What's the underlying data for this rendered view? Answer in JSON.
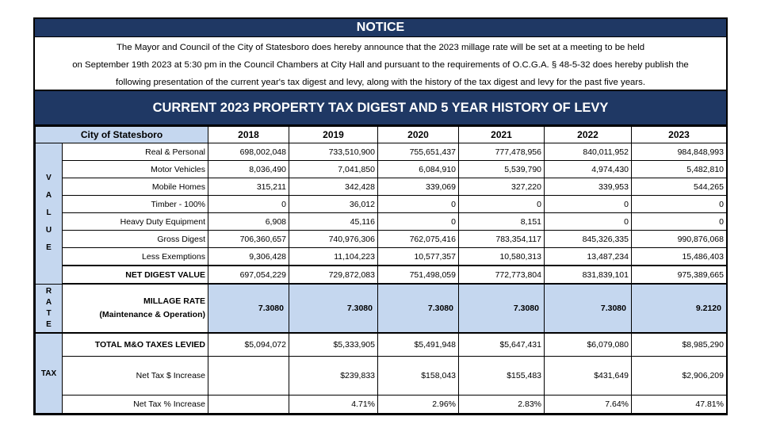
{
  "notice": {
    "heading": "NOTICE",
    "lines": [
      "The Mayor and Council of the City of Statesboro does hereby announce that the 2023 millage rate will be set at a meeting to be held",
      "on September 19th 2023 at 5:30 pm in the Council Chambers at City Hall and pursuant to the requirements of O.C.G.A. § 48-5-32 does hereby publish the",
      "following presentation of the current year's tax digest and levy, along with the history of the tax digest and levy for the past five years."
    ]
  },
  "title": "CURRENT 2023 PROPERTY TAX DIGEST AND 5 YEAR HISTORY OF LEVY",
  "table": {
    "entity": "City of Statesboro",
    "years": [
      "2018",
      "2019",
      "2020",
      "2021",
      "2022",
      "2023"
    ],
    "value_section_letters": [
      "V",
      "A",
      "L",
      "U",
      "E"
    ],
    "rate_section_letters": [
      "R",
      "A",
      "T",
      "E"
    ],
    "tax_section_label": "TAX",
    "value_rows": [
      {
        "label": "Real & Personal",
        "values": [
          "698,002,048",
          "733,510,900",
          "755,651,437",
          "777,478,956",
          "840,011,952",
          "984,848,993"
        ]
      },
      {
        "label": "Motor Vehicles",
        "values": [
          "8,036,490",
          "7,041,850",
          "6,084,910",
          "5,539,790",
          "4,974,430",
          "5,482,810"
        ]
      },
      {
        "label": "Mobile Homes",
        "values": [
          "315,211",
          "342,428",
          "339,069",
          "327,220",
          "339,953",
          "544,265"
        ]
      },
      {
        "label": "Timber - 100%",
        "values": [
          "0",
          "36,012",
          "0",
          "0",
          "0",
          "0"
        ]
      },
      {
        "label": "Heavy Duty Equipment",
        "values": [
          "6,908",
          "45,116",
          "0",
          "8,151",
          "0",
          "0"
        ]
      },
      {
        "label": "Gross Digest",
        "values": [
          "706,360,657",
          "740,976,306",
          "762,075,416",
          "783,354,117",
          "845,326,335",
          "990,876,068"
        ]
      },
      {
        "label": "Less Exemptions",
        "values": [
          "9,306,428",
          "11,104,223",
          "10,577,357",
          "10,580,313",
          "13,487,234",
          "15,486,403"
        ]
      }
    ],
    "net_digest": {
      "label": "NET DIGEST VALUE",
      "values": [
        "697,054,229",
        "729,872,083",
        "751,498,059",
        "772,773,804",
        "831,839,101",
        "975,389,665"
      ]
    },
    "millage": {
      "label_line1": "MILLAGE RATE",
      "label_line2": "(Maintenance & Operation)",
      "values": [
        "7.3080",
        "7.3080",
        "7.3080",
        "7.3080",
        "7.3080",
        "9.2120"
      ]
    },
    "tax_rows": {
      "levied": {
        "label": "TOTAL M&O TAXES LEVIED",
        "values": [
          "$5,094,072",
          "$5,333,905",
          "$5,491,948",
          "$5,647,431",
          "$6,079,080",
          "$8,985,290"
        ]
      },
      "increase": {
        "label": "Net Tax $ Increase",
        "values": [
          "",
          "$239,833",
          "$158,043",
          "$155,483",
          "$431,649",
          "$2,906,209"
        ]
      },
      "pct": {
        "label": "Net Tax % Increase",
        "values": [
          "",
          "4.71%",
          "2.96%",
          "2.83%",
          "7.64%",
          "47.81%"
        ]
      }
    }
  },
  "colors": {
    "header_navy": "#1f3864",
    "accent_light_blue": "#c5d7ef"
  }
}
